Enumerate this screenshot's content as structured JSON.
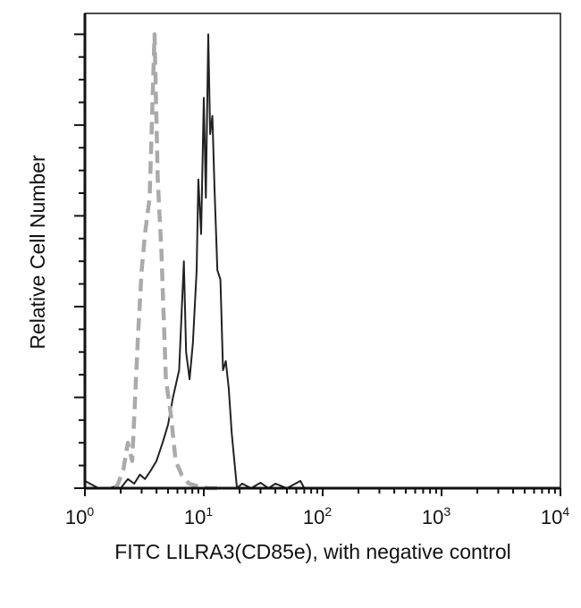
{
  "chart_data": {
    "type": "line",
    "title": "",
    "xlabel": "FITC LILRA3(CD85e), with negative control",
    "ylabel": "Relative Cell Number",
    "x_scale": "log",
    "xlim": [
      1,
      10000
    ],
    "ylim": [
      0,
      5.23
    ],
    "x_ticks": [
      {
        "base": "10",
        "exp": "0"
      },
      {
        "base": "10",
        "exp": "1"
      },
      {
        "base": "10",
        "exp": "2"
      },
      {
        "base": "10",
        "exp": "3"
      },
      {
        "base": "10",
        "exp": "4"
      }
    ],
    "y_tick_labels": "none",
    "grid": false,
    "series": [
      {
        "style": "solid",
        "color": "#222222",
        "x": [
          1.0,
          1.3,
          1.6,
          1.8,
          2.0,
          2.3,
          2.6,
          2.9,
          3.2,
          3.6,
          4.0,
          4.5,
          5.0,
          5.5,
          6.2,
          6.8,
          7.1,
          7.6,
          8.1,
          8.7,
          9.0,
          9.5,
          10.0,
          10.4,
          10.9,
          11.3,
          11.8,
          12.3,
          13.0,
          13.8,
          14.5,
          15.3,
          16.2,
          17.2,
          19.0,
          21,
          25,
          30,
          35,
          40,
          50,
          65,
          70,
          100,
          1000,
          10000
        ],
        "y": [
          0.08,
          0.0,
          0.0,
          0.02,
          0.0,
          0.1,
          0.05,
          0.15,
          0.1,
          0.2,
          0.3,
          0.5,
          0.7,
          1.0,
          1.3,
          2.5,
          1.5,
          1.2,
          1.6,
          2.4,
          3.4,
          2.8,
          4.3,
          3.2,
          5.0,
          3.9,
          4.1,
          3.3,
          2.4,
          2.3,
          1.3,
          1.4,
          1.1,
          0.6,
          0.0,
          0.05,
          0.0,
          0.06,
          0.0,
          0.05,
          0.0,
          0.08,
          0.0,
          0.0,
          0.0,
          0.0
        ]
      },
      {
        "style": "dashed",
        "color": "#aaaaaa",
        "x": [
          1.8,
          1.9,
          2.1,
          2.3,
          2.5,
          2.8,
          3.0,
          3.2,
          3.5,
          3.85,
          4.1,
          4.4,
          4.8,
          5.3,
          5.8,
          6.5,
          7.5,
          9,
          11,
          13
        ],
        "y": [
          0.0,
          0.05,
          0.2,
          0.5,
          0.3,
          1.7,
          2.4,
          2.8,
          3.2,
          5.0,
          3.4,
          2.6,
          1.2,
          0.8,
          0.3,
          0.15,
          0.05,
          0.02,
          0.0,
          0.0
        ]
      }
    ]
  }
}
